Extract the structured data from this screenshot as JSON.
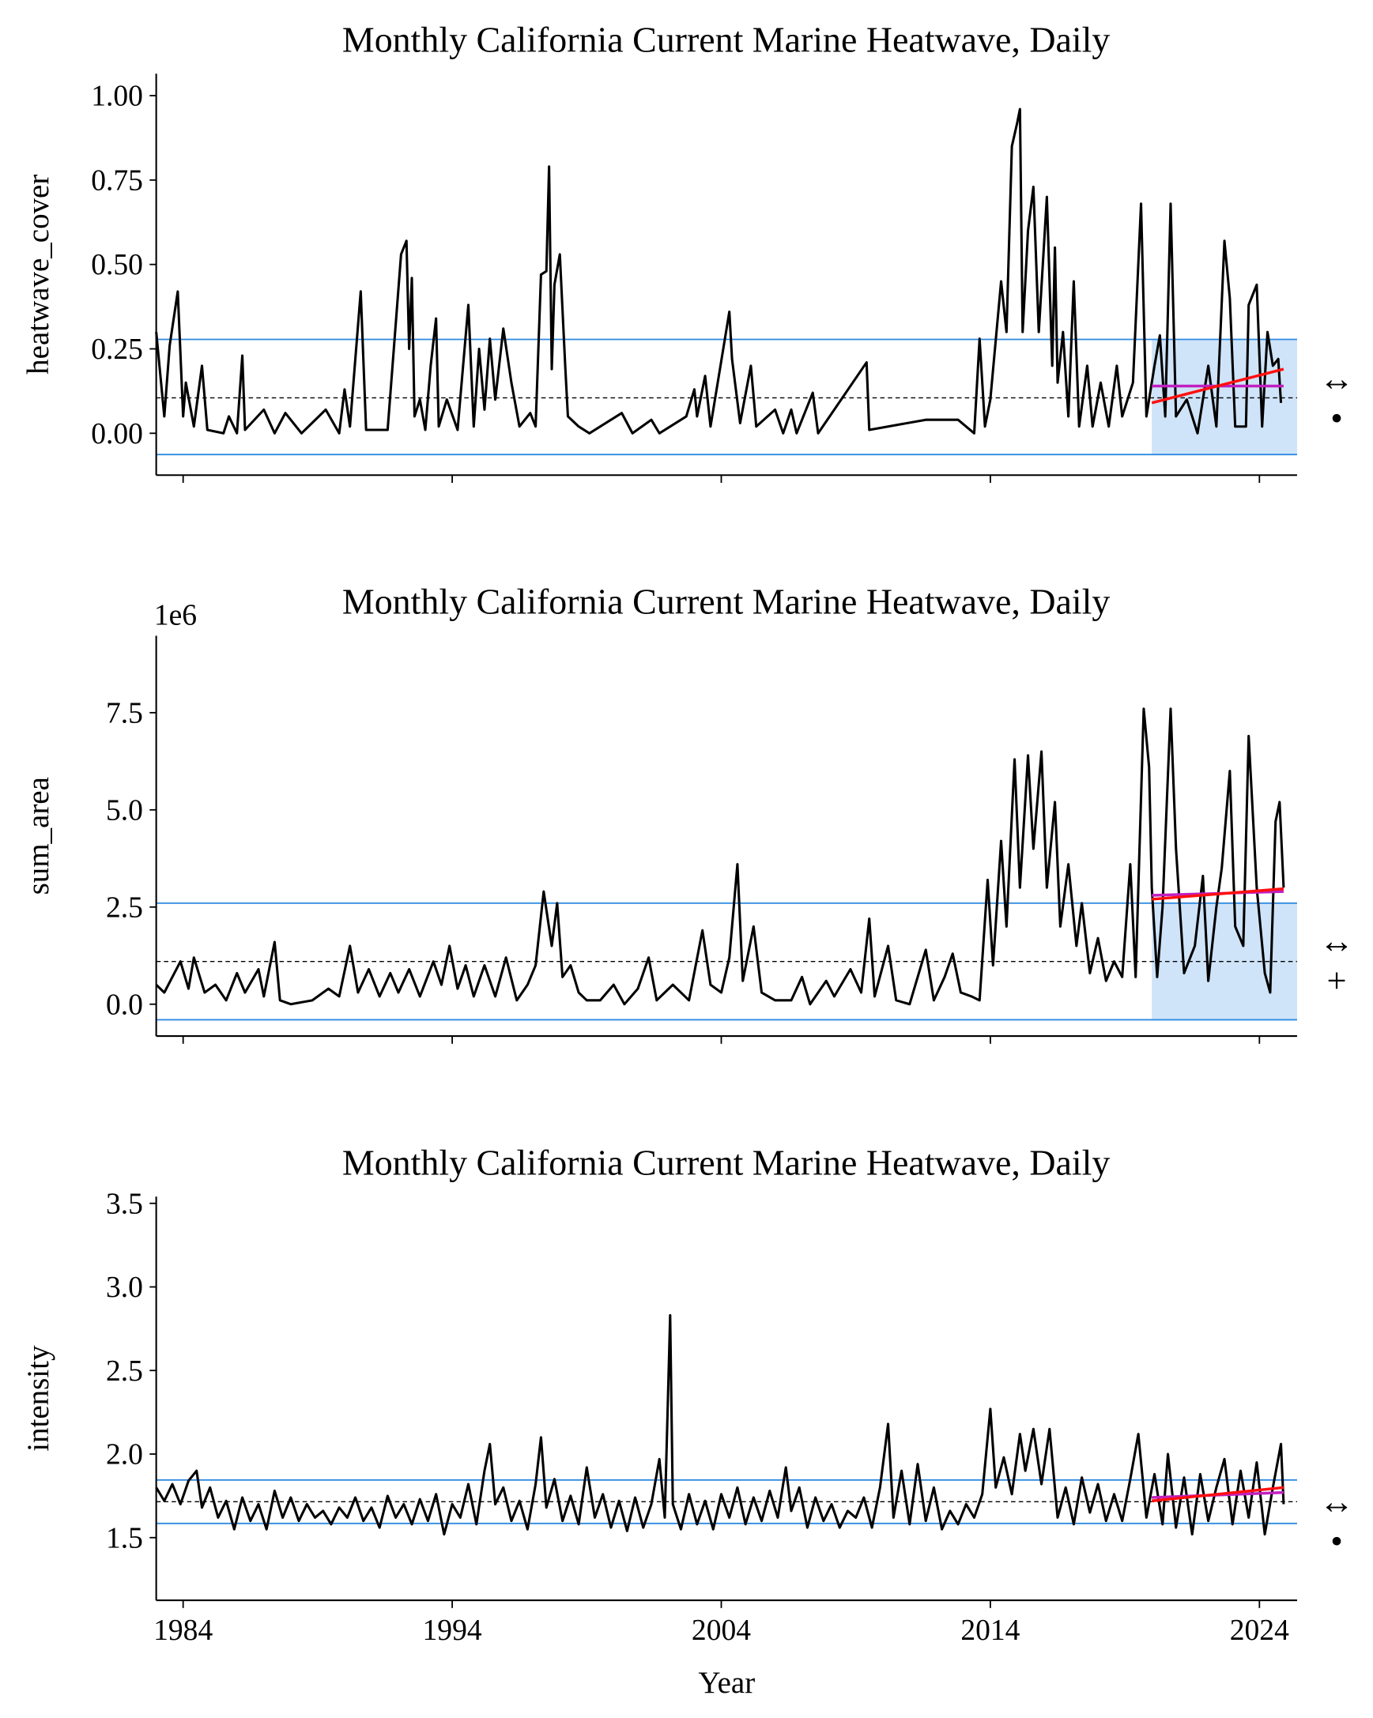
{
  "chart_data": [
    {
      "type": "line",
      "title": "Monthly California Current Marine Heatwave, Daily",
      "ylabel": "heatwave_cover",
      "x": [
        1983.0,
        1983.3,
        1983.5,
        1983.8,
        1984.0,
        1984.1,
        1984.4,
        1984.7,
        1984.9,
        1985.5,
        1985.7,
        1986.0,
        1986.2,
        1986.3,
        1987.0,
        1987.4,
        1987.8,
        1988.4,
        1989.3,
        1989.8,
        1990.0,
        1990.2,
        1990.6,
        1990.8,
        1991.6,
        1992.1,
        1992.3,
        1992.4,
        1992.5,
        1992.6,
        1992.8,
        1993.0,
        1993.2,
        1993.4,
        1993.5,
        1993.8,
        1994.2,
        1994.6,
        1994.8,
        1995.0,
        1995.2,
        1995.4,
        1995.6,
        1995.9,
        1996.2,
        1996.5,
        1996.9,
        1997.1,
        1997.3,
        1997.5,
        1997.6,
        1997.7,
        1997.8,
        1998.0,
        1998.2,
        1998.3,
        1998.7,
        1999.1,
        2000.3,
        2000.7,
        2001.4,
        2001.7,
        2002.7,
        2003.0,
        2003.1,
        2003.4,
        2003.6,
        2004.3,
        2004.4,
        2004.7,
        2005.1,
        2005.3,
        2006.0,
        2006.3,
        2006.6,
        2006.8,
        2007.4,
        2007.6,
        2009.4,
        2009.5,
        2011.6,
        2012.8,
        2013.4,
        2013.6,
        2013.8,
        2014.0,
        2014.4,
        2014.6,
        2014.8,
        2015.0,
        2015.1,
        2015.2,
        2015.4,
        2015.6,
        2015.8,
        2016.1,
        2016.3,
        2016.4,
        2016.5,
        2016.7,
        2016.9,
        2017.1,
        2017.3,
        2017.6,
        2017.8,
        2018.1,
        2018.4,
        2018.7,
        2018.9,
        2019.3,
        2019.6,
        2019.8,
        2020.1,
        2020.3,
        2020.5,
        2020.7,
        2020.9,
        2021.3,
        2021.7,
        2022.1,
        2022.4,
        2022.7,
        2022.9,
        2023.1,
        2023.5,
        2023.6,
        2023.9,
        2024.1,
        2024.3,
        2024.5,
        2024.7,
        2024.8
      ],
      "series": [
        {
          "color": "#000000",
          "values": [
            0.3,
            0.05,
            0.26,
            0.42,
            0.05,
            0.15,
            0.02,
            0.2,
            0.01,
            0.0,
            0.05,
            0.0,
            0.23,
            0.01,
            0.07,
            0.0,
            0.06,
            0.0,
            0.07,
            0.0,
            0.13,
            0.02,
            0.42,
            0.01,
            0.01,
            0.53,
            0.57,
            0.25,
            0.46,
            0.05,
            0.1,
            0.01,
            0.2,
            0.34,
            0.02,
            0.1,
            0.01,
            0.38,
            0.02,
            0.25,
            0.07,
            0.28,
            0.1,
            0.31,
            0.15,
            0.02,
            0.06,
            0.02,
            0.47,
            0.48,
            0.79,
            0.19,
            0.44,
            0.53,
            0.2,
            0.05,
            0.02,
            0.0,
            0.06,
            0.0,
            0.04,
            0.0,
            0.05,
            0.13,
            0.05,
            0.17,
            0.02,
            0.36,
            0.22,
            0.03,
            0.2,
            0.02,
            0.07,
            0.0,
            0.07,
            0.0,
            0.12,
            0.0,
            0.21,
            0.01,
            0.04,
            0.04,
            0.0,
            0.28,
            0.02,
            0.1,
            0.45,
            0.3,
            0.85,
            0.92,
            0.96,
            0.3,
            0.6,
            0.73,
            0.3,
            0.7,
            0.2,
            0.55,
            0.15,
            0.3,
            0.05,
            0.45,
            0.02,
            0.2,
            0.02,
            0.15,
            0.02,
            0.2,
            0.05,
            0.15,
            0.68,
            0.05,
            0.2,
            0.29,
            0.05,
            0.68,
            0.05,
            0.1,
            0.0,
            0.2,
            0.02,
            0.57,
            0.4,
            0.02,
            0.02,
            0.38,
            0.44,
            0.02,
            0.3,
            0.2,
            0.22,
            0.09
          ]
        }
      ],
      "xlim": [
        1983.0,
        2025.4
      ],
      "xticks": [
        1984,
        1994,
        2004,
        2014,
        2024
      ],
      "xtick_labels": false,
      "ylim": [
        -0.124,
        1.065
      ],
      "yticks": [
        {
          "value": 0,
          "label": "0.00"
        },
        {
          "value": 0.25,
          "label": "0.25"
        },
        {
          "value": 0.5,
          "label": "0.50"
        },
        {
          "value": 0.75,
          "label": "0.75"
        },
        {
          "value": 1,
          "label": "1.00"
        }
      ],
      "mean": 0.105,
      "band": [
        -0.063,
        0.278
      ],
      "band_color": "#2e8ae0",
      "shade": true,
      "shade_color": "#cfe4f9",
      "trend": {
        "x": [
          2020.0,
          2024.9
        ],
        "fit": [
          0.09,
          0.19
        ],
        "fit_color": "#ff1010",
        "level": [
          0.14,
          0.14
        ],
        "level_color": "#c020c0"
      },
      "markers": [
        "↔",
        "•"
      ]
    },
    {
      "type": "line",
      "title": "Monthly California Current Marine Heatwave, Daily",
      "ylabel": "sum_area",
      "offset_label": "1e6",
      "x": [
        1983.0,
        1983.3,
        1983.6,
        1983.9,
        1984.2,
        1984.4,
        1984.8,
        1985.2,
        1985.6,
        1986.0,
        1986.3,
        1986.8,
        1987.0,
        1987.4,
        1987.6,
        1988.0,
        1988.8,
        1989.4,
        1989.8,
        1990.2,
        1990.5,
        1990.9,
        1991.3,
        1991.7,
        1992.0,
        1992.4,
        1992.8,
        1993.3,
        1993.6,
        1993.9,
        1994.2,
        1994.5,
        1994.8,
        1995.2,
        1995.6,
        1996.0,
        1996.4,
        1996.8,
        1997.1,
        1997.4,
        1997.7,
        1997.9,
        1998.1,
        1998.4,
        1998.7,
        1999.0,
        1999.5,
        2000.0,
        2000.4,
        2000.9,
        2001.3,
        2001.6,
        2002.2,
        2002.8,
        2003.3,
        2003.6,
        2004.0,
        2004.3,
        2004.6,
        2004.8,
        2005.2,
        2005.5,
        2006.0,
        2006.6,
        2007.0,
        2007.3,
        2007.9,
        2008.2,
        2008.8,
        2009.2,
        2009.5,
        2009.7,
        2010.2,
        2010.5,
        2011.0,
        2011.6,
        2011.9,
        2012.3,
        2012.6,
        2012.9,
        2013.3,
        2013.6,
        2013.9,
        2014.1,
        2014.4,
        2014.6,
        2014.9,
        2015.1,
        2015.4,
        2015.6,
        2015.9,
        2016.1,
        2016.4,
        2016.6,
        2016.9,
        2017.2,
        2017.4,
        2017.7,
        2018.0,
        2018.3,
        2018.6,
        2018.9,
        2019.2,
        2019.4,
        2019.7,
        2019.9,
        2020.0,
        2020.2,
        2020.4,
        2020.7,
        2020.9,
        2021.2,
        2021.6,
        2021.9,
        2022.1,
        2022.4,
        2022.6,
        2022.9,
        2023.1,
        2023.4,
        2023.6,
        2023.9,
        2024.2,
        2024.4,
        2024.6,
        2024.75,
        2024.9
      ],
      "series": [
        {
          "color": "#000000",
          "values": [
            0.5,
            0.3,
            0.7,
            1.1,
            0.4,
            1.2,
            0.3,
            0.5,
            0.1,
            0.8,
            0.3,
            0.9,
            0.2,
            1.6,
            0.1,
            0.0,
            0.1,
            0.4,
            0.2,
            1.5,
            0.3,
            0.9,
            0.2,
            0.8,
            0.3,
            0.9,
            0.2,
            1.1,
            0.5,
            1.5,
            0.4,
            1.0,
            0.2,
            1.0,
            0.2,
            1.2,
            0.1,
            0.5,
            1.0,
            2.9,
            1.5,
            2.6,
            0.7,
            1.0,
            0.3,
            0.1,
            0.1,
            0.5,
            0.0,
            0.4,
            1.2,
            0.1,
            0.5,
            0.1,
            1.9,
            0.5,
            0.3,
            1.2,
            3.6,
            0.6,
            2.0,
            0.3,
            0.1,
            0.1,
            0.7,
            0.0,
            0.6,
            0.2,
            0.9,
            0.3,
            2.2,
            0.2,
            1.5,
            0.1,
            0.0,
            1.4,
            0.1,
            0.7,
            1.3,
            0.3,
            0.2,
            0.1,
            3.2,
            1.0,
            4.2,
            2.0,
            6.3,
            3.0,
            6.4,
            4.0,
            6.5,
            3.0,
            5.2,
            2.0,
            3.6,
            1.5,
            2.6,
            0.8,
            1.7,
            0.6,
            1.1,
            0.7,
            3.6,
            0.7,
            7.6,
            6.1,
            3.0,
            0.7,
            2.5,
            7.6,
            4.0,
            0.8,
            1.5,
            3.3,
            0.6,
            2.5,
            3.5,
            6.0,
            2.0,
            1.5,
            6.9,
            3.0,
            0.8,
            0.3,
            4.7,
            5.2,
            3.0
          ]
        }
      ],
      "xlim": [
        1983.0,
        2025.4
      ],
      "xticks": [
        1984,
        1994,
        2004,
        2014,
        2024
      ],
      "xtick_labels": false,
      "ylim": [
        -0.82,
        9.48
      ],
      "yticks": [
        {
          "value": 0,
          "label": "0.0"
        },
        2.5,
        {
          "value": 5,
          "label": "5.0"
        },
        7.5
      ],
      "mean": 1.1,
      "band": [
        -0.4,
        2.6
      ],
      "band_color": "#2e8ae0",
      "shade": true,
      "shade_color": "#cfe4f9",
      "trend": {
        "x": [
          2020.0,
          2024.9
        ],
        "fit": [
          2.7,
          2.97
        ],
        "fit_color": "#ff1010",
        "level": [
          2.8,
          2.9
        ],
        "level_color": "#c020c0"
      },
      "markers": [
        "↔",
        "+"
      ]
    },
    {
      "type": "line",
      "title": "Monthly California Current Marine Heatwave, Daily",
      "ylabel": "intensity",
      "xlabel": "Year",
      "x": [
        1983.0,
        1983.3,
        1983.6,
        1983.9,
        1984.2,
        1984.5,
        1984.7,
        1985.0,
        1985.3,
        1985.6,
        1985.9,
        1986.2,
        1986.5,
        1986.8,
        1987.1,
        1987.4,
        1987.7,
        1988.0,
        1988.3,
        1988.6,
        1988.9,
        1989.2,
        1989.5,
        1989.8,
        1990.1,
        1990.4,
        1990.7,
        1991.0,
        1991.3,
        1991.6,
        1991.9,
        1992.2,
        1992.5,
        1992.8,
        1993.1,
        1993.4,
        1993.7,
        1994.0,
        1994.3,
        1994.6,
        1994.9,
        1995.2,
        1995.4,
        1995.6,
        1995.9,
        1996.2,
        1996.5,
        1996.8,
        1997.1,
        1997.3,
        1997.5,
        1997.8,
        1998.1,
        1998.4,
        1998.7,
        1999.0,
        1999.3,
        1999.6,
        1999.9,
        2000.2,
        2000.5,
        2000.8,
        2001.1,
        2001.4,
        2001.7,
        2001.9,
        2002.1,
        2002.2,
        2002.5,
        2002.8,
        2003.1,
        2003.4,
        2003.7,
        2004.0,
        2004.3,
        2004.6,
        2004.9,
        2005.2,
        2005.5,
        2005.8,
        2006.1,
        2006.4,
        2006.6,
        2006.9,
        2007.2,
        2007.5,
        2007.8,
        2008.1,
        2008.4,
        2008.7,
        2009.0,
        2009.3,
        2009.6,
        2009.9,
        2010.2,
        2010.4,
        2010.7,
        2011.0,
        2011.3,
        2011.6,
        2011.9,
        2012.2,
        2012.5,
        2012.8,
        2013.1,
        2013.4,
        2013.7,
        2014.0,
        2014.2,
        2014.5,
        2014.8,
        2015.1,
        2015.3,
        2015.6,
        2015.9,
        2016.2,
        2016.5,
        2016.8,
        2017.1,
        2017.4,
        2017.7,
        2018.0,
        2018.3,
        2018.6,
        2018.9,
        2019.2,
        2019.5,
        2019.8,
        2020.1,
        2020.4,
        2020.6,
        2020.9,
        2021.2,
        2021.5,
        2021.8,
        2022.1,
        2022.4,
        2022.7,
        2023.0,
        2023.3,
        2023.6,
        2023.9,
        2024.2,
        2024.5,
        2024.8,
        2024.9
      ],
      "series": [
        {
          "color": "#000000",
          "values": [
            1.8,
            1.72,
            1.82,
            1.7,
            1.84,
            1.9,
            1.68,
            1.8,
            1.62,
            1.72,
            1.55,
            1.74,
            1.6,
            1.7,
            1.55,
            1.78,
            1.62,
            1.74,
            1.6,
            1.7,
            1.62,
            1.66,
            1.58,
            1.68,
            1.62,
            1.74,
            1.6,
            1.68,
            1.56,
            1.75,
            1.62,
            1.7,
            1.58,
            1.73,
            1.6,
            1.76,
            1.52,
            1.7,
            1.62,
            1.82,
            1.58,
            1.9,
            2.06,
            1.7,
            1.8,
            1.6,
            1.72,
            1.55,
            1.82,
            2.1,
            1.68,
            1.85,
            1.6,
            1.75,
            1.58,
            1.92,
            1.62,
            1.76,
            1.56,
            1.72,
            1.54,
            1.74,
            1.56,
            1.7,
            1.97,
            1.62,
            2.83,
            1.7,
            1.55,
            1.76,
            1.58,
            1.72,
            1.55,
            1.76,
            1.62,
            1.8,
            1.58,
            1.74,
            1.6,
            1.78,
            1.62,
            1.92,
            1.66,
            1.8,
            1.56,
            1.74,
            1.6,
            1.7,
            1.56,
            1.66,
            1.62,
            1.74,
            1.56,
            1.8,
            2.18,
            1.62,
            1.9,
            1.58,
            1.94,
            1.6,
            1.8,
            1.55,
            1.66,
            1.58,
            1.7,
            1.62,
            1.76,
            2.27,
            1.8,
            1.98,
            1.76,
            2.12,
            1.9,
            2.15,
            1.82,
            2.15,
            1.62,
            1.8,
            1.58,
            1.86,
            1.65,
            1.82,
            1.6,
            1.76,
            1.6,
            1.85,
            2.12,
            1.62,
            1.88,
            1.58,
            2.0,
            1.56,
            1.86,
            1.52,
            1.88,
            1.6,
            1.8,
            1.97,
            1.58,
            1.9,
            1.62,
            1.95,
            1.52,
            1.8,
            2.06,
            1.7
          ]
        }
      ],
      "xlim": [
        1983.0,
        2025.4
      ],
      "xticks": [
        1984,
        1994,
        2004,
        2014,
        2024
      ],
      "xtick_labels": true,
      "ylim": [
        1.125,
        3.54
      ],
      "yticks": [
        1.5,
        {
          "value": 2,
          "label": "2.0"
        },
        2.5,
        {
          "value": 3,
          "label": "3.0"
        },
        3.5
      ],
      "mean": 1.715,
      "band": [
        1.585,
        1.845
      ],
      "band_color": "#2e8ae0",
      "shade": false,
      "trend": {
        "x": [
          2020.0,
          2024.9
        ],
        "fit": [
          1.72,
          1.8
        ],
        "fit_color": "#ff1010",
        "level": [
          1.74,
          1.77
        ],
        "level_color": "#c020c0"
      },
      "markers": [
        "↔",
        "•"
      ]
    }
  ]
}
